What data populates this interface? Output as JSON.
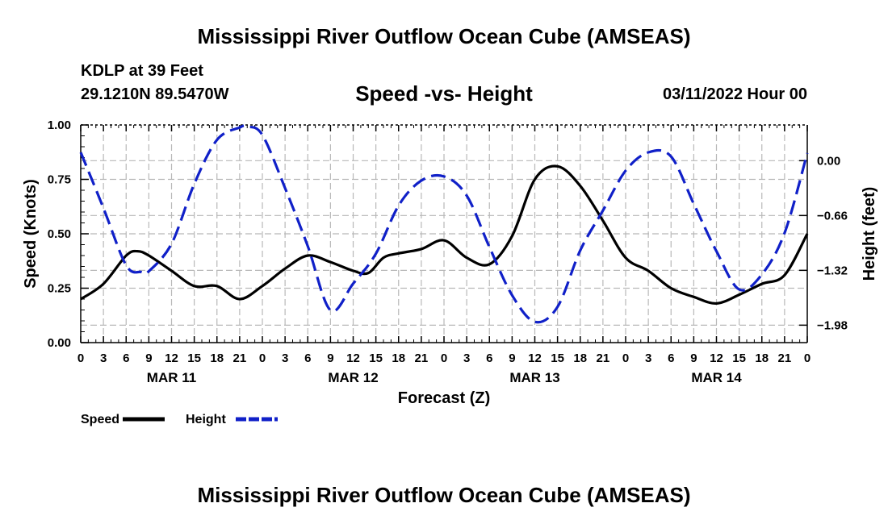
{
  "header": {
    "title": "Mississippi River Outflow Ocean Cube (AMSEAS)",
    "station": "KDLP at 39 Feet",
    "coords": "29.1210N  89.5470W",
    "chart_title": "Speed -vs- Height",
    "datetime": "03/11/2022 Hour 00"
  },
  "footer": {
    "title": "Mississippi River Outflow Ocean Cube (AMSEAS)"
  },
  "colors": {
    "speed": "#000000",
    "height": "#1020c8",
    "grid": "#b8b8b8"
  },
  "chart_data": {
    "type": "line",
    "title": "Speed -vs- Height",
    "xlabel": "Forecast (Z)",
    "ylabel": "Speed (Knots)",
    "y2label": "Height (feet)",
    "x_range_hours": [
      0,
      96
    ],
    "ylim": [
      0,
      1
    ],
    "y2lim": [
      -2.19,
      0.43
    ],
    "y_ticks": [
      "0.00",
      "0.25",
      "0.50",
      "0.75",
      "1.00"
    ],
    "y2_ticks": [
      {
        "value": 0.0,
        "label": "0.00"
      },
      {
        "value": -0.66,
        "label": "−0.66"
      },
      {
        "value": -1.32,
        "label": "−1.32"
      },
      {
        "value": -1.98,
        "label": "−1.98"
      }
    ],
    "x_tick_labels": [
      "0",
      "3",
      "6",
      "9",
      "12",
      "15",
      "18",
      "21",
      "0",
      "3",
      "6",
      "9",
      "12",
      "15",
      "18",
      "21",
      "0",
      "3",
      "6",
      "9",
      "12",
      "15",
      "18",
      "21",
      "0",
      "3",
      "6",
      "9",
      "12",
      "15",
      "18",
      "21",
      "0"
    ],
    "day_labels": [
      {
        "hour": 12,
        "label": "MAR 11"
      },
      {
        "hour": 36,
        "label": "MAR 12"
      },
      {
        "hour": 60,
        "label": "MAR 13"
      },
      {
        "hour": 84,
        "label": "MAR 14"
      }
    ],
    "legend": [
      {
        "name": "Speed",
        "style": "solid"
      },
      {
        "name": "Height",
        "style": "dashed"
      }
    ],
    "series": [
      {
        "name": "Speed",
        "axis": "left",
        "points": [
          [
            0,
            0.2
          ],
          [
            3,
            0.27
          ],
          [
            6,
            0.4
          ],
          [
            7.5,
            0.42
          ],
          [
            9,
            0.4
          ],
          [
            12,
            0.33
          ],
          [
            15,
            0.26
          ],
          [
            18,
            0.26
          ],
          [
            21,
            0.2
          ],
          [
            24,
            0.26
          ],
          [
            27,
            0.34
          ],
          [
            30,
            0.4
          ],
          [
            33,
            0.37
          ],
          [
            36,
            0.33
          ],
          [
            38,
            0.32
          ],
          [
            40,
            0.39
          ],
          [
            42,
            0.41
          ],
          [
            45,
            0.43
          ],
          [
            48,
            0.47
          ],
          [
            51,
            0.39
          ],
          [
            54,
            0.36
          ],
          [
            57,
            0.49
          ],
          [
            60,
            0.75
          ],
          [
            63,
            0.81
          ],
          [
            66,
            0.72
          ],
          [
            69,
            0.56
          ],
          [
            72,
            0.39
          ],
          [
            75,
            0.33
          ],
          [
            78,
            0.25
          ],
          [
            81,
            0.21
          ],
          [
            84,
            0.18
          ],
          [
            87,
            0.22
          ],
          [
            90,
            0.27
          ],
          [
            93,
            0.31
          ],
          [
            96,
            0.5
          ]
        ]
      },
      {
        "name": "Height",
        "axis": "right",
        "points": [
          [
            0,
            0.1
          ],
          [
            3,
            -0.57
          ],
          [
            6,
            -1.26
          ],
          [
            8,
            -1.34
          ],
          [
            9,
            -1.33
          ],
          [
            12,
            -1.0
          ],
          [
            15,
            -0.28
          ],
          [
            18,
            0.25
          ],
          [
            21,
            0.4
          ],
          [
            22,
            0.41
          ],
          [
            24,
            0.31
          ],
          [
            27,
            -0.33
          ],
          [
            30,
            -1.03
          ],
          [
            33,
            -1.8
          ],
          [
            36,
            -1.48
          ],
          [
            39,
            -1.12
          ],
          [
            42,
            -0.54
          ],
          [
            45,
            -0.24
          ],
          [
            48,
            -0.19
          ],
          [
            51,
            -0.42
          ],
          [
            54,
            -1.04
          ],
          [
            57,
            -1.62
          ],
          [
            60,
            -1.94
          ],
          [
            63,
            -1.76
          ],
          [
            66,
            -1.08
          ],
          [
            69,
            -0.6
          ],
          [
            72,
            -0.12
          ],
          [
            75,
            0.1
          ],
          [
            78,
            0.05
          ],
          [
            81,
            -0.52
          ],
          [
            84,
            -1.09
          ],
          [
            87,
            -1.55
          ],
          [
            90,
            -1.37
          ],
          [
            93,
            -0.87
          ],
          [
            96,
            0.09
          ]
        ]
      }
    ]
  }
}
